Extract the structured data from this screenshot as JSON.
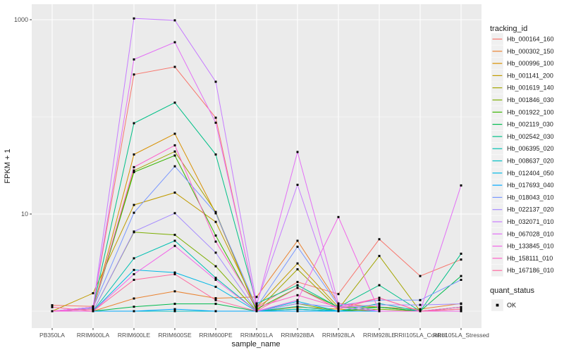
{
  "figure": {
    "background": "#FFFFFF",
    "panel_background": "#EBEBEB",
    "grid_color": "#FFFFFF",
    "tick_mark_color": "#333333",
    "tick_label_color": "#4D4D4D",
    "axis_title_color": "#1A1A1A",
    "legend_label_color": "#1A1A1A",
    "legend_key_fill": "#F0F0F0",
    "point_color": "#000000"
  },
  "chart_data": {
    "type": "line",
    "title": "",
    "xlabel": "sample_name",
    "ylabel": "FPKM + 1",
    "y_scale": "log10",
    "grid": true,
    "y_major_ticks": [
      {
        "value": 1000,
        "label": "1000"
      },
      {
        "value": 10,
        "label": "10"
      }
    ],
    "y_minor_breaks": [
      100,
      1
    ],
    "ylim": [
      0.74,
      1450
    ],
    "point_shape": "square",
    "legend_position": "right",
    "categories": [
      "PB350LA",
      "RRIM600LA",
      "RRIM600LE",
      "RRIM600SE",
      "RRIM600PE",
      "RRIM901LA",
      "RRIM928BA",
      "RRIM928LA",
      "RRIM928LE",
      "RRII105LA_Control",
      "RRII105LA_Stressed"
    ],
    "legend_title": "tracking_id",
    "series": [
      {
        "name": "Hb_000164_160",
        "color": "#F8766D",
        "values": [
          1.15,
          1.12,
          273,
          327,
          98,
          1.1,
          2.0,
          1.5,
          5.5,
          2.3,
          3.4
        ]
      },
      {
        "name": "Hb_000302_150",
        "color": "#EA8331",
        "values": [
          1.0,
          1.0,
          1.35,
          1.6,
          1.36,
          1.4,
          5.3,
          1.2,
          1.1,
          1.05,
          1.2
        ]
      },
      {
        "name": "Hb_000996_100",
        "color": "#D89000",
        "values": [
          1.0,
          1.05,
          41,
          67,
          10.2,
          1.0,
          1.1,
          1.05,
          1.0,
          1.0,
          1.05
        ]
      },
      {
        "name": "Hb_001141_200",
        "color": "#C09B00",
        "values": [
          1.0,
          1.53,
          12.4,
          16.6,
          8.3,
          1.1,
          3.1,
          1.1,
          1.0,
          1.0,
          1.0
        ]
      },
      {
        "name": "Hb_001619_140",
        "color": "#A3A500",
        "values": [
          1.0,
          1.1,
          28,
          44,
          10.5,
          1.0,
          2.7,
          1.05,
          3.7,
          1.0,
          1.0
        ]
      },
      {
        "name": "Hb_001846_030",
        "color": "#7CAE00",
        "values": [
          1.0,
          1.0,
          6.5,
          6.1,
          2.9,
          1.0,
          1.2,
          1.0,
          1.05,
          1.0,
          1.0
        ]
      },
      {
        "name": "Hb_001922_100",
        "color": "#39B600",
        "values": [
          1.0,
          1.05,
          27,
          40,
          6.0,
          1.05,
          1.74,
          1.1,
          1.1,
          1.0,
          1.1
        ]
      },
      {
        "name": "Hb_002119_030",
        "color": "#00BB4E",
        "values": [
          1.0,
          1.0,
          1.11,
          1.19,
          1.19,
          1.0,
          1.05,
          1.0,
          1.1,
          1.0,
          2.3
        ]
      },
      {
        "name": "Hb_002542_030",
        "color": "#00C087",
        "values": [
          1.0,
          1.1,
          86,
          140,
          41,
          1.2,
          1.85,
          1.1,
          1.85,
          1.0,
          3.9
        ]
      },
      {
        "name": "Hb_006395_020",
        "color": "#00C0B2",
        "values": [
          1.0,
          1.0,
          3.5,
          5.3,
          2.2,
          1.0,
          1.12,
          1.0,
          1.2,
          1.0,
          1.1
        ]
      },
      {
        "name": "Hb_008637_020",
        "color": "#00BFC4",
        "values": [
          1.0,
          1.0,
          1.0,
          1.0,
          1.0,
          1.0,
          1.05,
          1.0,
          1.0,
          1.0,
          1.0
        ]
      },
      {
        "name": "Hb_012404_050",
        "color": "#00B8E5",
        "values": [
          1.0,
          1.0,
          2.66,
          2.5,
          1.78,
          1.0,
          1.26,
          1.0,
          1.0,
          1.0,
          1.0
        ]
      },
      {
        "name": "Hb_017693_040",
        "color": "#00A9FF",
        "values": [
          1.0,
          1.0,
          1.0,
          1.05,
          1.0,
          1.0,
          1.0,
          1.0,
          1.0,
          1.0,
          1.0
        ]
      },
      {
        "name": "Hb_018043_010",
        "color": "#7997FF",
        "values": [
          1.0,
          1.08,
          10.3,
          31,
          10.2,
          1.1,
          4.6,
          1.15,
          1.3,
          1.3,
          2.1
        ]
      },
      {
        "name": "Hb_022137_020",
        "color": "#A58AFF",
        "values": [
          1.0,
          1.0,
          6.6,
          10.2,
          4.0,
          1.0,
          1.2,
          1.1,
          1.16,
          1.16,
          1.19
        ]
      },
      {
        "name": "Hb_032071_010",
        "color": "#C77CFF",
        "values": [
          1.0,
          1.1,
          1030,
          985,
          230,
          1.2,
          20,
          1.1,
          1.0,
          1.0,
          1.0
        ]
      },
      {
        "name": "Hb_067028_010",
        "color": "#E36EF6",
        "values": [
          1.0,
          1.1,
          390,
          586,
          87,
          1.15,
          43.5,
          1.2,
          1.0,
          1.0,
          19.7
        ]
      },
      {
        "name": "Hb_133845_010",
        "color": "#F265E8",
        "values": [
          1.0,
          1.0,
          2.4,
          4.7,
          2.1,
          1.0,
          1.3,
          9.3,
          1.0,
          1.0,
          1.0
        ]
      },
      {
        "name": "Hb_158111_010",
        "color": "#FF61C9",
        "values": [
          1.0,
          1.05,
          30.4,
          51,
          5.2,
          1.1,
          1.46,
          1.1,
          1.37,
          1.0,
          1.1
        ]
      },
      {
        "name": "Hb_167186_010",
        "color": "#FF689F",
        "values": [
          1.1,
          1.0,
          2.1,
          2.4,
          1.3,
          1.0,
          1.74,
          1.05,
          1.37,
          1.0,
          1.05
        ]
      }
    ],
    "legend2": {
      "title": "quant_status",
      "items": [
        {
          "label": "OK",
          "symbol": "square",
          "color": "#000000"
        }
      ]
    }
  }
}
